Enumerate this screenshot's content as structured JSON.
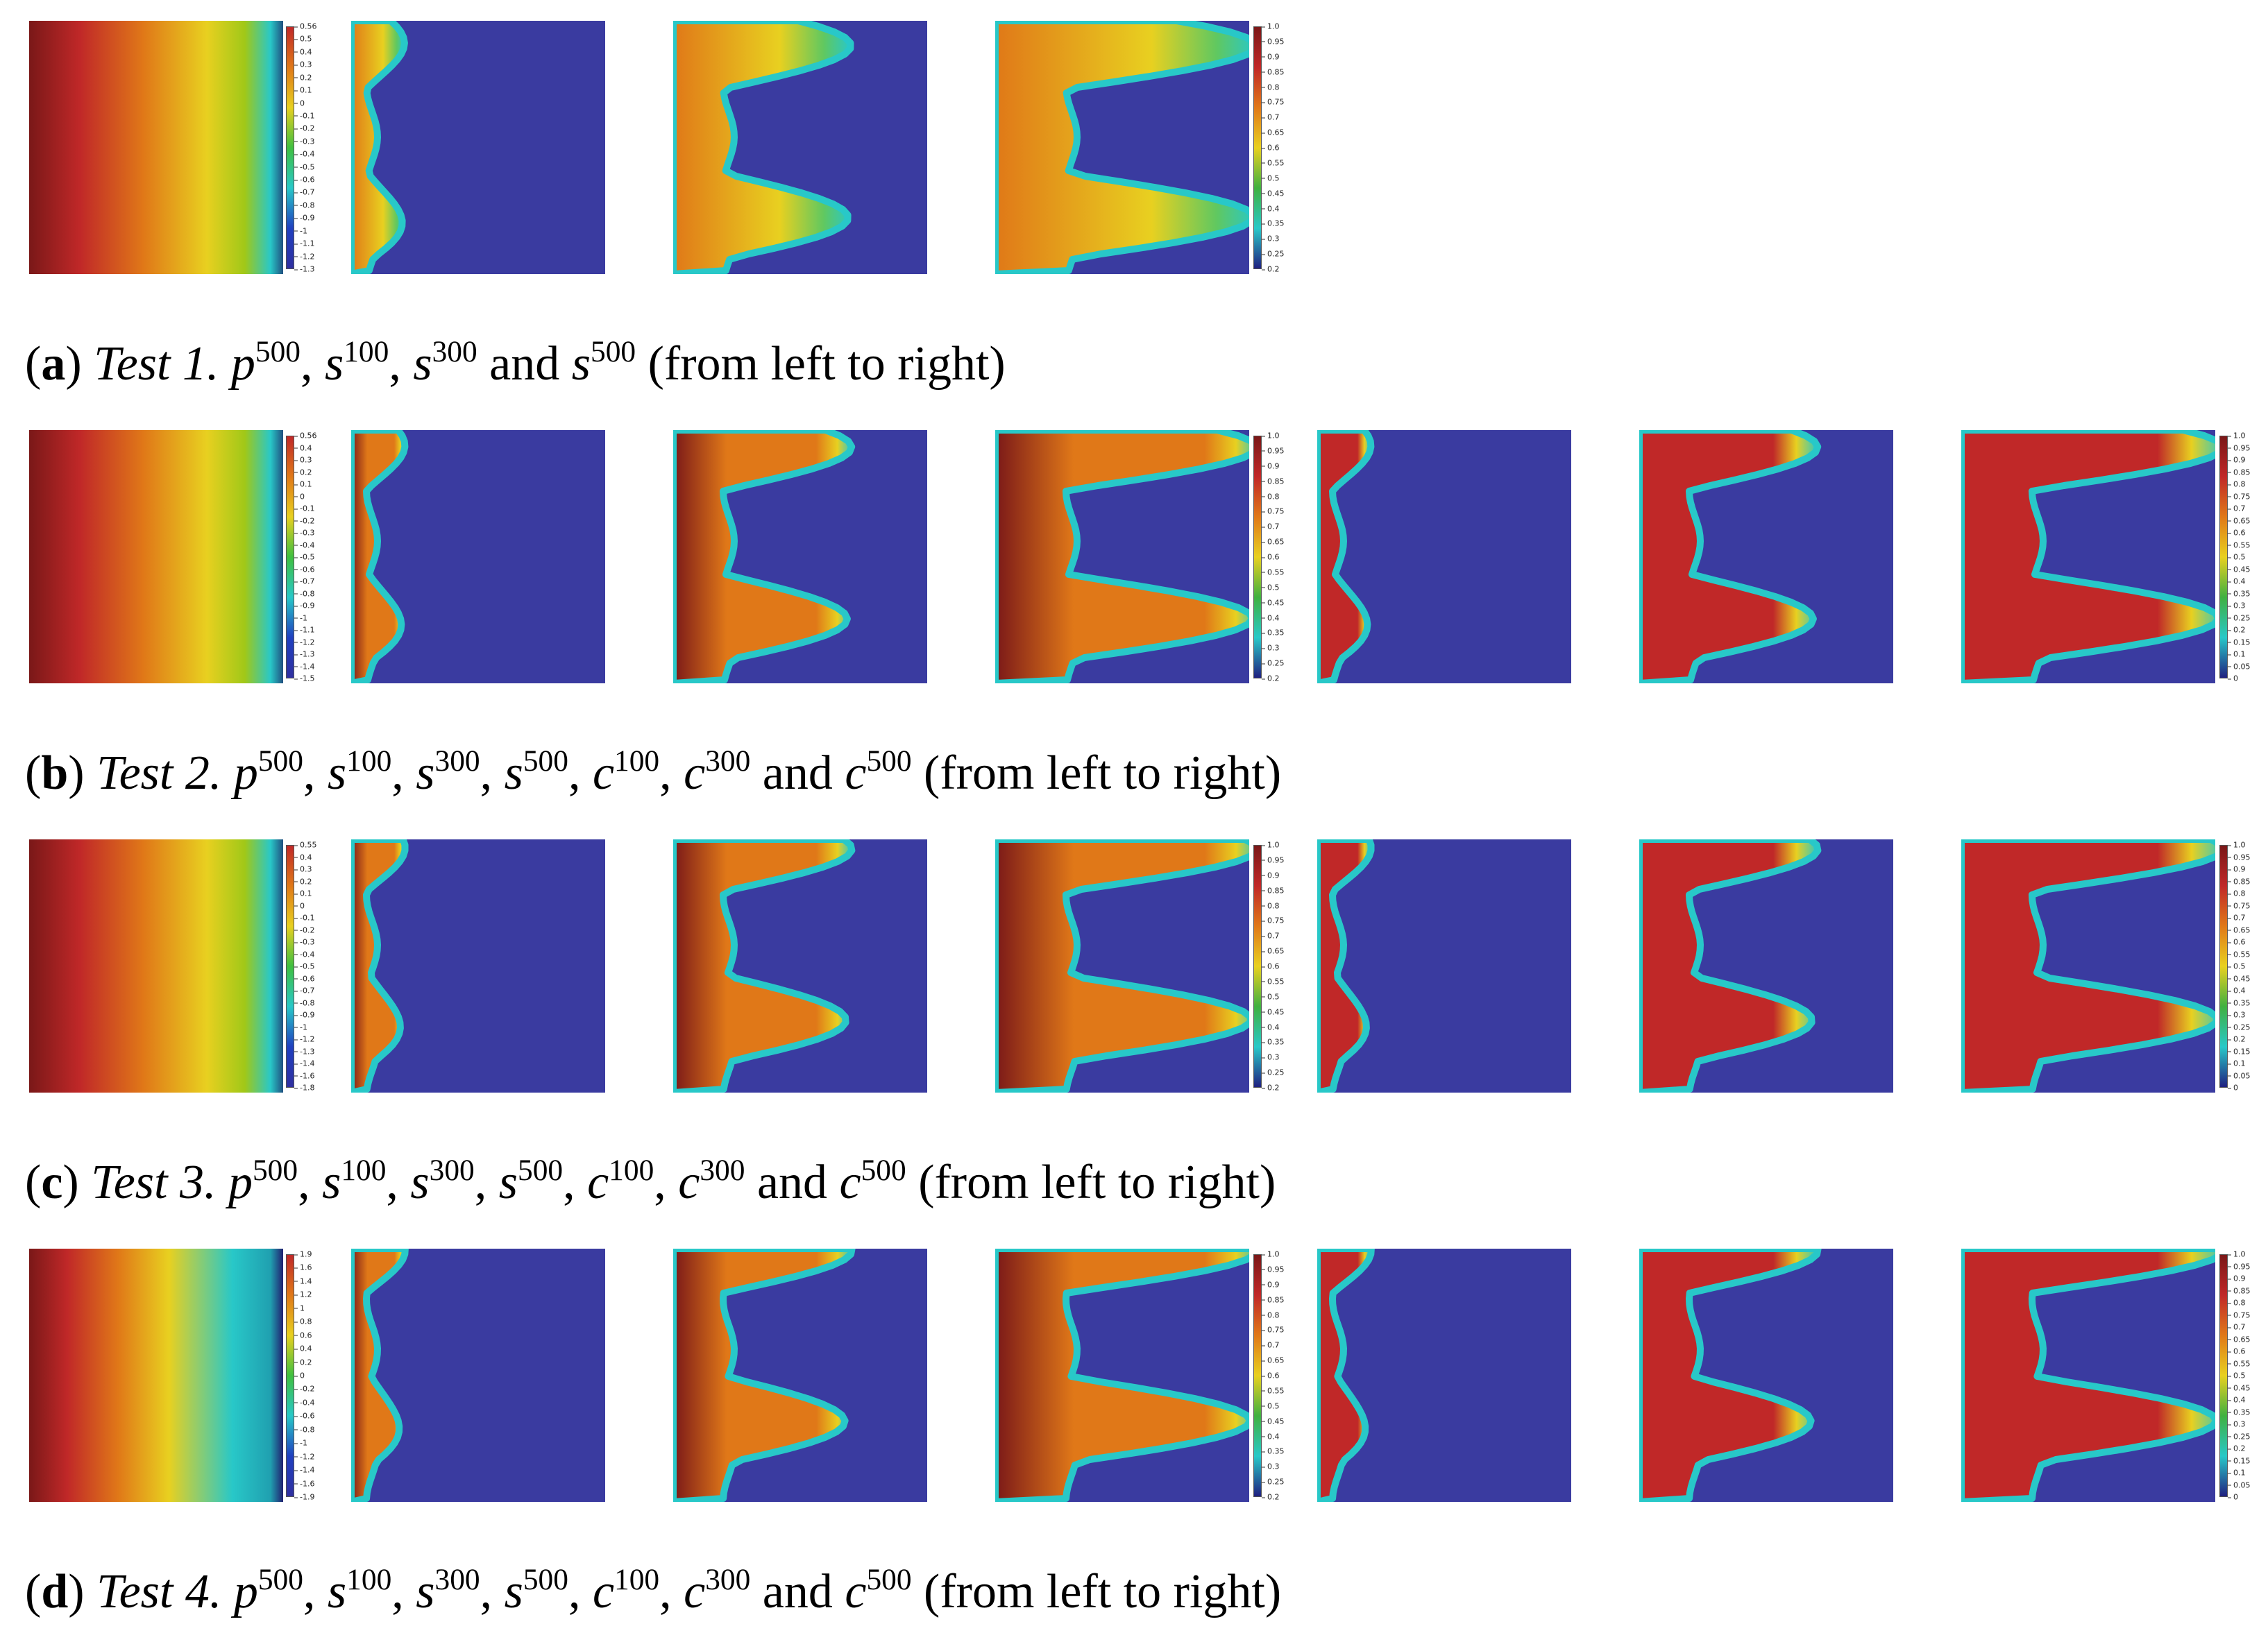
{
  "figure": {
    "rows": [
      {
        "id": "a",
        "label": "a",
        "test": "Test 1.",
        "fields": [
          [
            "p",
            "500"
          ],
          [
            "s",
            "100"
          ],
          [
            "s",
            "300"
          ],
          [
            "s",
            "500"
          ]
        ],
        "conj": "and",
        "suffix": "(from left to right)",
        "panels": [
          "pressure",
          "front100",
          "front300",
          "front500"
        ],
        "colorbar_p": [
          "0.56",
          "0.5",
          "0.4",
          "0.3",
          "0.2",
          "0.1",
          "0",
          "-0.1",
          "-0.2",
          "-0.3",
          "-0.4",
          "-0.5",
          "-0.6",
          "-0.7",
          "-0.8",
          "-0.9",
          "-1",
          "-1.1",
          "-1.2",
          "-1.3"
        ],
        "colorbar_s": [
          "1.0",
          "0.95",
          "0.9",
          "0.85",
          "0.8",
          "0.75",
          "0.7",
          "0.65",
          "0.6",
          "0.55",
          "0.5",
          "0.45",
          "0.4",
          "0.35",
          "0.3",
          "0.25",
          "0.2"
        ]
      },
      {
        "id": "b",
        "label": "b",
        "test": "Test 2.",
        "fields": [
          [
            "p",
            "500"
          ],
          [
            "s",
            "100"
          ],
          [
            "s",
            "300"
          ],
          [
            "s",
            "500"
          ],
          [
            "c",
            "100"
          ],
          [
            "c",
            "300"
          ],
          [
            "c",
            "500"
          ]
        ],
        "conj": "and",
        "suffix": "(from left to right)",
        "panels": [
          "pressure",
          "front100",
          "front300",
          "front500",
          "cfront100",
          "cfront300",
          "cfront500"
        ],
        "colorbar_p": [
          "0.56",
          "0.4",
          "0.3",
          "0.2",
          "0.1",
          "0",
          "-0.1",
          "-0.2",
          "-0.3",
          "-0.4",
          "-0.5",
          "-0.6",
          "-0.7",
          "-0.8",
          "-0.9",
          "-1",
          "-1.1",
          "-1.2",
          "-1.3",
          "-1.4",
          "-1.5"
        ],
        "colorbar_s": [
          "1.0",
          "0.95",
          "0.9",
          "0.85",
          "0.8",
          "0.75",
          "0.7",
          "0.65",
          "0.6",
          "0.55",
          "0.5",
          "0.45",
          "0.4",
          "0.35",
          "0.3",
          "0.25",
          "0.2"
        ],
        "colorbar_c": [
          "1.0",
          "0.95",
          "0.9",
          "0.85",
          "0.8",
          "0.75",
          "0.7",
          "0.65",
          "0.6",
          "0.55",
          "0.5",
          "0.45",
          "0.4",
          "0.35",
          "0.3",
          "0.25",
          "0.2",
          "0.15",
          "0.1",
          "0.05",
          "0"
        ]
      },
      {
        "id": "c",
        "label": "c",
        "test": "Test 3.",
        "fields": [
          [
            "p",
            "500"
          ],
          [
            "s",
            "100"
          ],
          [
            "s",
            "300"
          ],
          [
            "s",
            "500"
          ],
          [
            "c",
            "100"
          ],
          [
            "c",
            "300"
          ],
          [
            "c",
            "500"
          ]
        ],
        "conj": "and",
        "suffix": "(from left to right)",
        "panels": [
          "pressure",
          "front100",
          "front300",
          "front500",
          "cfront100",
          "cfront300",
          "cfront500"
        ],
        "colorbar_p": [
          "0.55",
          "0.4",
          "0.3",
          "0.2",
          "0.1",
          "0",
          "-0.1",
          "-0.2",
          "-0.3",
          "-0.4",
          "-0.5",
          "-0.6",
          "-0.7",
          "-0.8",
          "-0.9",
          "-1",
          "-1.2",
          "-1.3",
          "-1.4",
          "-1.6",
          "-1.8"
        ],
        "colorbar_s": [
          "1.0",
          "0.95",
          "0.9",
          "0.85",
          "0.8",
          "0.75",
          "0.7",
          "0.65",
          "0.6",
          "0.55",
          "0.5",
          "0.45",
          "0.4",
          "0.35",
          "0.3",
          "0.25",
          "0.2"
        ],
        "colorbar_c": [
          "1.0",
          "0.95",
          "0.9",
          "0.85",
          "0.8",
          "0.75",
          "0.7",
          "0.65",
          "0.6",
          "0.55",
          "0.5",
          "0.45",
          "0.4",
          "0.35",
          "0.3",
          "0.25",
          "0.2",
          "0.15",
          "0.1",
          "0.05",
          "0"
        ]
      },
      {
        "id": "d",
        "label": "d",
        "test": "Test 4.",
        "fields": [
          [
            "p",
            "500"
          ],
          [
            "s",
            "100"
          ],
          [
            "s",
            "300"
          ],
          [
            "s",
            "500"
          ],
          [
            "c",
            "100"
          ],
          [
            "c",
            "300"
          ],
          [
            "c",
            "500"
          ]
        ],
        "conj": "and",
        "suffix": "(from left to right)",
        "panels": [
          "pressure",
          "front100",
          "front300",
          "front500",
          "cfront100",
          "cfront300",
          "cfront500"
        ],
        "colorbar_p": [
          "1.9",
          "1.6",
          "1.4",
          "1.2",
          "1",
          "0.8",
          "0.6",
          "0.4",
          "0.2",
          "0",
          "-0.2",
          "-0.4",
          "-0.6",
          "-0.8",
          "-1",
          "-1.2",
          "-1.4",
          "-1.6",
          "-1.9"
        ],
        "colorbar_s": [
          "1.0",
          "0.95",
          "0.9",
          "0.85",
          "0.8",
          "0.75",
          "0.7",
          "0.65",
          "0.6",
          "0.55",
          "0.5",
          "0.45",
          "0.4",
          "0.35",
          "0.3",
          "0.25",
          "0.2"
        ],
        "colorbar_c": [
          "1.0",
          "0.95",
          "0.9",
          "0.85",
          "0.8",
          "0.75",
          "0.7",
          "0.65",
          "0.6",
          "0.55",
          "0.5",
          "0.45",
          "0.4",
          "0.35",
          "0.3",
          "0.25",
          "0.2",
          "0.15",
          "0.1",
          "0.05",
          "0"
        ]
      }
    ],
    "colors": {
      "blue": "#3a3ba0",
      "cyan": "#28c8c8",
      "yellow": "#e8d020",
      "orange": "#e07818",
      "red": "#c02828",
      "darkred": "#7a1818"
    }
  }
}
